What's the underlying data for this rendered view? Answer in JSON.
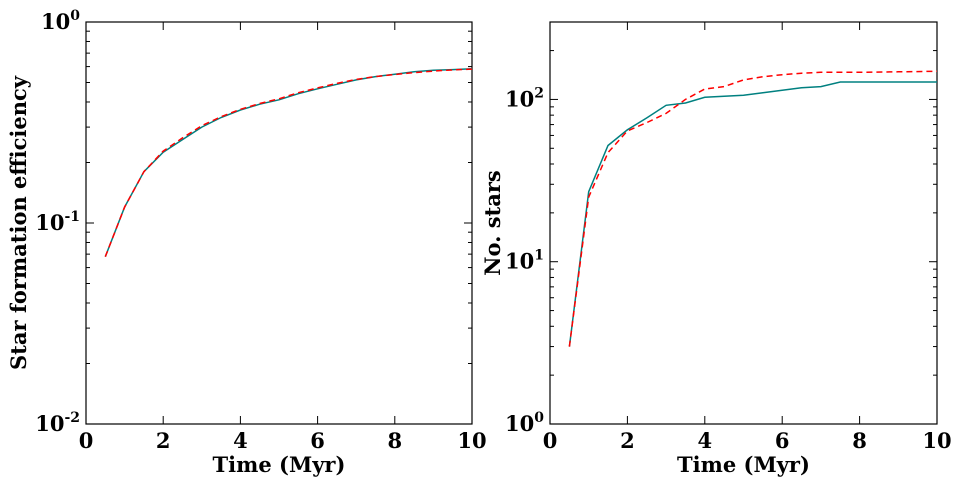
{
  "chart_data": [
    {
      "type": "line",
      "xlabel": "Time (Myr)",
      "ylabel": "Star formation efficiency",
      "xlim": [
        0,
        10
      ],
      "ylim": [
        0.01,
        1
      ],
      "yscale": "log",
      "xticks": [
        "0",
        "2",
        "4",
        "6",
        "8",
        "10"
      ],
      "yticks": [
        {
          "base": "10",
          "exp": "-2"
        },
        {
          "base": "10",
          "exp": "-1"
        },
        {
          "base": "10",
          "exp": "0"
        }
      ],
      "grid": false,
      "series": [
        {
          "style": "solid",
          "color": "#008080",
          "x": [
            0.5,
            1.0,
            1.5,
            2.0,
            2.5,
            3.0,
            3.5,
            4.0,
            4.5,
            5.0,
            5.5,
            6.0,
            6.5,
            7.0,
            7.5,
            8.0,
            8.5,
            9.0,
            9.5,
            10.0
          ],
          "y": [
            0.068,
            0.12,
            0.18,
            0.225,
            0.26,
            0.3,
            0.335,
            0.365,
            0.39,
            0.41,
            0.44,
            0.465,
            0.49,
            0.515,
            0.535,
            0.55,
            0.565,
            0.575,
            0.58,
            0.585
          ]
        },
        {
          "style": "dashed",
          "color": "#ff0000",
          "x": [
            0.5,
            1.0,
            1.5,
            2.0,
            2.5,
            3.0,
            3.5,
            4.0,
            4.5,
            5.0,
            5.5,
            6.0,
            6.5,
            7.0,
            7.5,
            8.0,
            8.5,
            9.0,
            9.5,
            10.0
          ],
          "y": [
            0.068,
            0.12,
            0.18,
            0.228,
            0.265,
            0.305,
            0.338,
            0.368,
            0.393,
            0.415,
            0.445,
            0.47,
            0.495,
            0.518,
            0.535,
            0.548,
            0.56,
            0.57,
            0.578,
            0.583
          ]
        }
      ]
    },
    {
      "type": "line",
      "xlabel": "Time (Myr)",
      "ylabel": "No. stars",
      "xlim": [
        0,
        10
      ],
      "ylim": [
        1,
        300
      ],
      "yscale": "log",
      "xticks": [
        "0",
        "2",
        "4",
        "6",
        "8",
        "10"
      ],
      "yticks": [
        {
          "base": "10",
          "exp": "0"
        },
        {
          "base": "10",
          "exp": "1"
        },
        {
          "base": "10",
          "exp": "2"
        }
      ],
      "grid": false,
      "series": [
        {
          "style": "solid",
          "color": "#008080",
          "x": [
            0.5,
            1.0,
            1.5,
            2.0,
            2.5,
            3.0,
            3.5,
            4.0,
            5.0,
            5.5,
            6.0,
            6.5,
            7.0,
            7.5,
            8.0,
            9.0,
            10.0
          ],
          "y": [
            3,
            27,
            52,
            65,
            77,
            92,
            95,
            103,
            106,
            110,
            114,
            118,
            120,
            128,
            128,
            128,
            128
          ]
        },
        {
          "style": "dashed",
          "color": "#ff0000",
          "x": [
            0.5,
            1.0,
            1.5,
            2.0,
            2.5,
            3.0,
            3.5,
            4.0,
            4.5,
            5.0,
            5.5,
            6.0,
            6.5,
            7.0,
            7.5,
            8.0,
            9.0,
            10.0
          ],
          "y": [
            3,
            25,
            47,
            64,
            72,
            82,
            100,
            116,
            120,
            132,
            138,
            142,
            145,
            147,
            147,
            147,
            148,
            149
          ]
        }
      ]
    }
  ]
}
